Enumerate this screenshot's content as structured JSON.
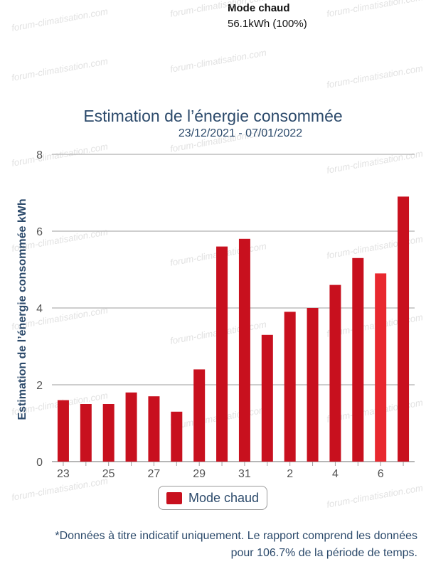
{
  "summary": {
    "mode": "Mode chaud",
    "total": "56.1kWh (100%)"
  },
  "watermark_text": "forum-climatisation.com",
  "footnote": {
    "line1": "*Données à titre indicatif uniquement. Le rapport comprend les données",
    "line2": "pour 106.7% de la période de temps."
  },
  "colors": {
    "bar": "#c8101e",
    "bar_highlight": "#e8282f",
    "text": "#2c4a6b",
    "grid": "#bdbdbd"
  },
  "chart_data": {
    "type": "bar",
    "title": "Estimation de l’énergie consommée",
    "subtitle": "23/12/2021 - 07/01/2022",
    "ylabel": "Estimation de l’énergie consommée kWh",
    "xlabel": "",
    "ylim": [
      0,
      8
    ],
    "yticks": [
      0,
      2,
      4,
      6,
      8
    ],
    "categories": [
      "23",
      "24",
      "25",
      "26",
      "27",
      "28",
      "29",
      "30",
      "31",
      "1",
      "2",
      "3",
      "4",
      "5",
      "6",
      "7"
    ],
    "tick_labels": [
      "23",
      "",
      "25",
      "",
      "27",
      "",
      "29",
      "",
      "31",
      "",
      "2",
      "",
      "4",
      "",
      "6",
      ""
    ],
    "series": [
      {
        "name": "Mode chaud",
        "values": [
          1.6,
          1.5,
          1.5,
          1.8,
          1.7,
          1.3,
          2.4,
          5.6,
          5.8,
          3.3,
          3.9,
          4.0,
          4.6,
          5.3,
          4.9,
          6.9
        ]
      }
    ],
    "highlighted_index": 14,
    "grid": true,
    "legend": "bottom-center"
  }
}
